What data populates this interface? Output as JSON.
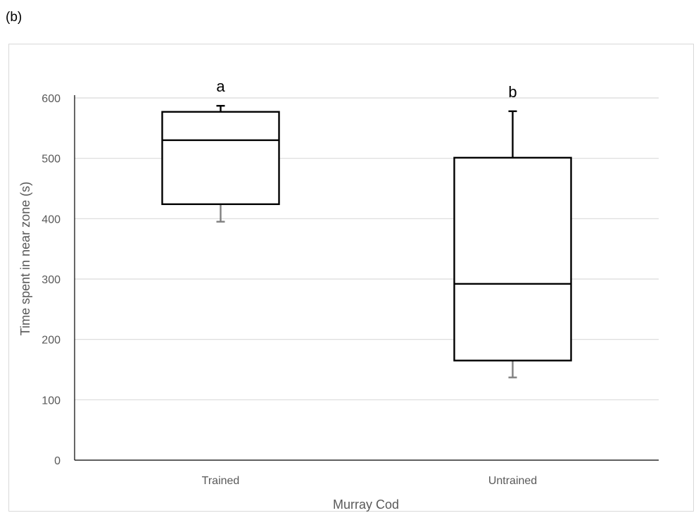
{
  "panel_label": "(b)",
  "chart_data": {
    "type": "box",
    "xlabel": "Murray Cod",
    "ylabel": "Time spent in near zone (s)",
    "ylim": [
      0,
      600
    ],
    "yticks": [
      0,
      100,
      200,
      300,
      400,
      500,
      600
    ],
    "grid": true,
    "categories": [
      "Trained",
      "Untrained"
    ],
    "boxes": [
      {
        "category": "Trained",
        "min": 395,
        "q1": 424,
        "median": 530,
        "q3": 577,
        "max": 587,
        "annotation": "a"
      },
      {
        "category": "Untrained",
        "min": 137,
        "q1": 165,
        "median": 292,
        "q3": 501,
        "max": 578,
        "annotation": "b"
      }
    ]
  },
  "colors": {
    "grid": "#d9d9d9",
    "axis": "#000000",
    "box": "#000000",
    "lower_whisker": "#7f7f7f",
    "text": "#595959"
  }
}
